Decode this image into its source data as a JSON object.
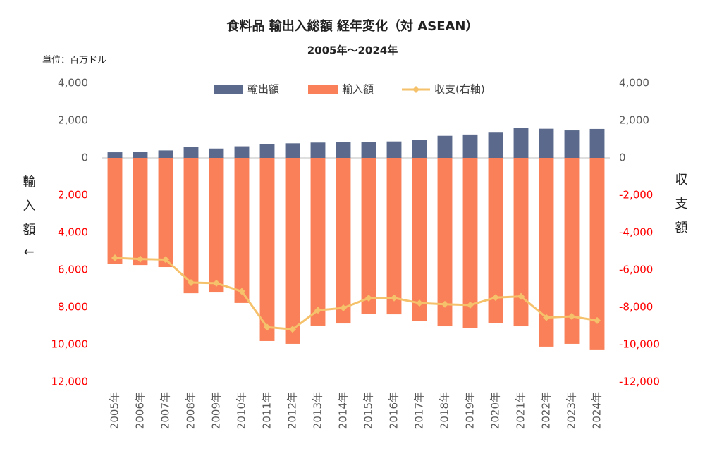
{
  "chart_data": {
    "type": "bar",
    "title": "食料品 輸出入総額 経年変化（対 ASEAN）",
    "subtitle": "2005年～2024年",
    "unit_note": "単位：百万ドル",
    "y_label": "輸入額↓",
    "y2_label": "収支額",
    "categories": [
      "2005年",
      "2006年",
      "2007年",
      "2008年",
      "2009年",
      "2010年",
      "2011年",
      "2012年",
      "2013年",
      "2014年",
      "2015年",
      "2016年",
      "2017年",
      "2018年",
      "2019年",
      "2020年",
      "2021年",
      "2022年",
      "2023年",
      "2024年"
    ],
    "series": [
      {
        "name": "輸出額",
        "type": "bar",
        "color": "#5b6a8c",
        "values": [
          300,
          320,
          400,
          570,
          500,
          620,
          740,
          780,
          820,
          830,
          830,
          880,
          970,
          1180,
          1250,
          1350,
          1600,
          1560,
          1470,
          1550
        ]
      },
      {
        "name": "輸入額",
        "type": "bar",
        "color": "#f98058",
        "values": [
          -5660,
          -5740,
          -5850,
          -7250,
          -7210,
          -7770,
          -9810,
          -9960,
          -8980,
          -8870,
          -8340,
          -8380,
          -8750,
          -9020,
          -9130,
          -8830,
          -9020,
          -10110,
          -9960,
          -10260
        ]
      },
      {
        "name": "収支(右軸)",
        "type": "line",
        "axis": "y2",
        "color": "#f5c26b",
        "values": [
          -5360,
          -5420,
          -5450,
          -6680,
          -6710,
          -7150,
          -9070,
          -9180,
          -8160,
          -8040,
          -7510,
          -7500,
          -7780,
          -7840,
          -7880,
          -7480,
          -7420,
          -8550,
          -8490,
          -8710
        ]
      }
    ],
    "ylim": [
      -12000,
      4000
    ],
    "yticks": [
      {
        "value": 4000,
        "label": "4,000"
      },
      {
        "value": 2000,
        "label": "2,000"
      },
      0,
      {
        "value": -2000,
        "label": "2,000"
      },
      {
        "value": -4000,
        "label": "4,000"
      },
      {
        "value": -6000,
        "label": "6,000"
      },
      {
        "value": -8000,
        "label": "8,000"
      },
      {
        "value": -10000,
        "label": "10,000"
      },
      {
        "value": -12000,
        "label": "12,000"
      }
    ],
    "y2lim": [
      -12000,
      4000
    ],
    "y2ticks": [
      {
        "value": 4000,
        "label": "4,000"
      },
      {
        "value": 2000,
        "label": "2,000"
      },
      0,
      {
        "value": -2000,
        "label": "-2,000"
      },
      {
        "value": -4000,
        "label": "-4,000"
      },
      {
        "value": -6000,
        "label": "-6,000"
      },
      {
        "value": -8000,
        "label": "-8,000"
      },
      {
        "value": -10000,
        "label": "-10,000"
      },
      {
        "value": -12000,
        "label": "-12,000"
      }
    ],
    "negative_tick_color": "#ff0000",
    "grid": false,
    "legend": "top"
  }
}
